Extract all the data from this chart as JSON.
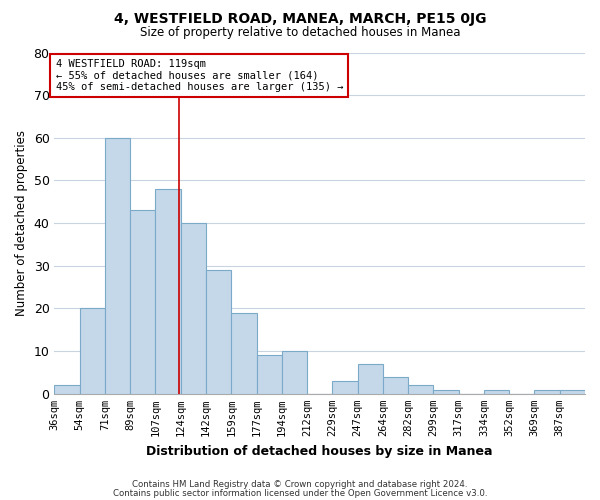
{
  "title": "4, WESTFIELD ROAD, MANEA, MARCH, PE15 0JG",
  "subtitle": "Size of property relative to detached houses in Manea",
  "bar_labels": [
    "36sqm",
    "54sqm",
    "71sqm",
    "89sqm",
    "107sqm",
    "124sqm",
    "142sqm",
    "159sqm",
    "177sqm",
    "194sqm",
    "212sqm",
    "229sqm",
    "247sqm",
    "264sqm",
    "282sqm",
    "299sqm",
    "317sqm",
    "334sqm",
    "352sqm",
    "369sqm",
    "387sqm"
  ],
  "bar_values": [
    2,
    20,
    60,
    43,
    48,
    40,
    29,
    19,
    9,
    10,
    0,
    3,
    7,
    4,
    2,
    1,
    0,
    1,
    0,
    1,
    1
  ],
  "bar_color": "#c5d8ea",
  "bar_edge_color": "#7aaac8",
  "ylim": [
    0,
    80
  ],
  "yticks": [
    0,
    10,
    20,
    30,
    40,
    50,
    60,
    70,
    80
  ],
  "ylabel": "Number of detached properties",
  "xlabel": "Distribution of detached houses by size in Manea",
  "annotation_line_color": "#cc0000",
  "annotation_box_text": "4 WESTFIELD ROAD: 119sqm\n← 55% of detached houses are smaller (164)\n45% of semi-detached houses are larger (135) →",
  "footnote1": "Contains HM Land Registry data © Crown copyright and database right 2024.",
  "footnote2": "Contains public sector information licensed under the Open Government Licence v3.0.",
  "bg_color": "#ffffff",
  "grid_color": "#c8d4e0",
  "n_bars": 21,
  "bar_width": 1.0,
  "red_line_bar_index": 4.95
}
